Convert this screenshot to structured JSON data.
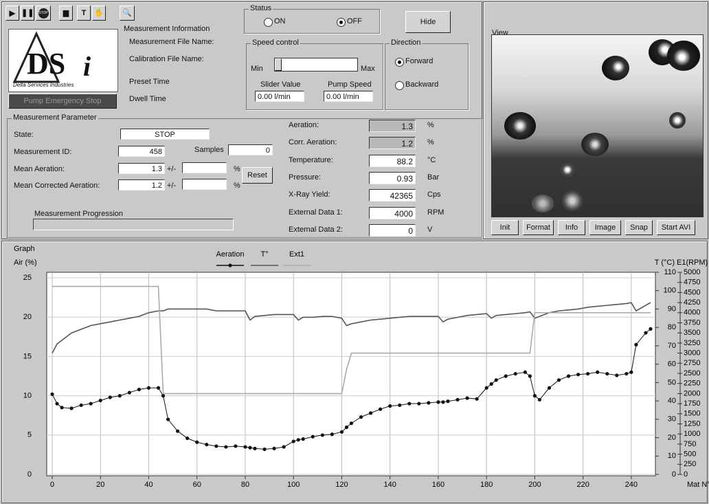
{
  "toolbar": {
    "stop_icon": "STOP"
  },
  "logo": {
    "letters": "DS",
    "italic": "i",
    "tagline": "Delta Services Industries"
  },
  "emergency_button": "Pump Emergency Stop",
  "measurement_info": {
    "title": "Measurement Information",
    "file_name": "Measurement File Name:",
    "calibration": "Calibration File Name:",
    "preset": "Preset Time",
    "dwell": "Dwell Time"
  },
  "status": {
    "title": "Status",
    "options": [
      "ON",
      "OFF"
    ],
    "selected": 1
  },
  "hide_button": "Hide",
  "speed_control": {
    "title": "Speed control",
    "min": "Min",
    "max": "Max",
    "slider_label": "Slider Value",
    "pump_label": "Pump Speed",
    "slider_value": "0.00  l/min",
    "pump_value": "0.00  l/min"
  },
  "direction": {
    "title": "Direction",
    "options": [
      "Forward",
      "Backward"
    ],
    "selected": 0
  },
  "view": {
    "title": "View",
    "buttons": [
      "Init",
      "Format",
      "Info",
      "Image",
      "Snap",
      "Start AVI"
    ]
  },
  "parameters": {
    "title": "Measurement Parameter",
    "state_label": "State:",
    "state": "STOP",
    "id_label": "Measurement ID:",
    "id": "458",
    "samples_label": "Samples",
    "samples": "0",
    "mean_label": "Mean Aeration:",
    "mean": "1.3",
    "pm": "+/-",
    "pct": "%",
    "reset": "Reset",
    "corr_label": "Mean Corrected Aeration:",
    "corr": "1.2",
    "progress_label": "Measurement Progression"
  },
  "readings": [
    {
      "label": "Aeration:",
      "value": "1.3",
      "unit": "%"
    },
    {
      "label": "Corr. Aeration:",
      "value": "1.2",
      "unit": "%"
    },
    {
      "label": "Temperature:",
      "value": "88.2",
      "unit": "°C"
    },
    {
      "label": "Pressure:",
      "value": "0.93",
      "unit": "Bar"
    },
    {
      "label": "X-Ray Yield:",
      "value": "42365",
      "unit": "Cps"
    },
    {
      "label": "External Data 1:",
      "value": "4000",
      "unit": "RPM"
    },
    {
      "label": "External Data 2:",
      "value": "0",
      "unit": "V"
    }
  ],
  "chart_data": {
    "type": "line",
    "title": "Graph",
    "y_label": "Air (%)",
    "y2_label": "T (°C)",
    "y3_label": "E1(RPM)",
    "x_label": "Mat N°",
    "grid": true,
    "x": [
      0,
      2,
      4,
      8,
      12,
      16,
      20,
      24,
      28,
      32,
      36,
      40,
      44,
      46,
      48,
      52,
      56,
      60,
      64,
      68,
      72,
      76,
      80,
      82,
      84,
      88,
      92,
      96,
      100,
      102,
      104,
      108,
      112,
      116,
      120,
      122,
      124,
      128,
      132,
      136,
      140,
      144,
      148,
      152,
      156,
      160,
      162,
      164,
      168,
      172,
      176,
      180,
      182,
      184,
      188,
      192,
      196,
      198,
      200,
      202,
      206,
      210,
      214,
      218,
      222,
      226,
      230,
      234,
      238,
      240,
      242,
      246,
      248
    ],
    "xlim": [
      0,
      250
    ],
    "xticks": [
      0,
      20,
      40,
      60,
      80,
      100,
      120,
      140,
      160,
      180,
      200,
      220,
      240
    ],
    "ylim": [
      0,
      25
    ],
    "yticks": [
      0,
      5,
      10,
      15,
      20,
      25
    ],
    "y2lim": [
      0,
      110
    ],
    "y2ticks": [
      0,
      10,
      20,
      30,
      40,
      50,
      60,
      70,
      80,
      90,
      100,
      110
    ],
    "y3lim": [
      0,
      5000
    ],
    "y3ticks": [
      0,
      250,
      500,
      750,
      1000,
      1250,
      1500,
      1750,
      2000,
      2250,
      2500,
      2750,
      3000,
      3250,
      3500,
      3750,
      4000,
      4250,
      4500,
      4750,
      5000
    ],
    "series": [
      {
        "name": "Aeration",
        "color": "#111111",
        "marker": true,
        "values": [
          10.2,
          9,
          8.5,
          8.4,
          8.8,
          9,
          9.4,
          9.8,
          10,
          10.4,
          10.8,
          11,
          11,
          10,
          7,
          5.5,
          4.6,
          4.1,
          3.8,
          3.6,
          3.5,
          3.6,
          3.5,
          3.4,
          3.3,
          3.2,
          3.3,
          3.5,
          4.2,
          4.4,
          4.5,
          4.8,
          5,
          5.1,
          5.4,
          6,
          6.5,
          7.3,
          7.8,
          8.3,
          8.7,
          8.8,
          9,
          9,
          9.1,
          9.2,
          9.2,
          9.3,
          9.5,
          9.7,
          9.6,
          11,
          11.5,
          12,
          12.5,
          12.8,
          13,
          12.5,
          10,
          9.5,
          11,
          12,
          12.5,
          12.7,
          12.8,
          13,
          12.8,
          12.6,
          12.8,
          13,
          16.5,
          18,
          18.5
        ]
      },
      {
        "name": "T°",
        "color": "#555555",
        "marker": false,
        "axis": "y2",
        "values": [
          66,
          71,
          73,
          77,
          79,
          81,
          82,
          83,
          84,
          85,
          86,
          88,
          89,
          89,
          90,
          90,
          90,
          90,
          90,
          89,
          89,
          89,
          89,
          84,
          86,
          86.5,
          87,
          87,
          87,
          84,
          85.5,
          85.5,
          86,
          86,
          85,
          81,
          82,
          83,
          84,
          84.5,
          85,
          85.5,
          86,
          86,
          86,
          86,
          83,
          84.5,
          85.5,
          86.5,
          87,
          87.5,
          85,
          86.5,
          87,
          87.5,
          88,
          88.5,
          85,
          86,
          88,
          89,
          89.5,
          90,
          91,
          91.5,
          92,
          92.5,
          93,
          93.5,
          89,
          92,
          93.5
        ]
      },
      {
        "name": "Ext1",
        "color": "#aaaaaa",
        "marker": false,
        "axis": "y3",
        "values": [
          4650,
          4650,
          4650,
          4650,
          4650,
          4650,
          4650,
          4650,
          4650,
          4650,
          4650,
          4650,
          4650,
          2000,
          2000,
          2000,
          2000,
          2000,
          2000,
          2000,
          2000,
          2000,
          2000,
          2000,
          2000,
          2000,
          2000,
          2000,
          2000,
          2000,
          2000,
          2000,
          2000,
          2000,
          2000,
          2600,
          3000,
          3000,
          3000,
          3000,
          3000,
          3000,
          3000,
          3000,
          3000,
          3000,
          3000,
          3000,
          3000,
          3000,
          3000,
          3000,
          3000,
          3000,
          3000,
          3000,
          3000,
          3000,
          4000,
          4000,
          4000,
          4000,
          4000,
          4000,
          4000,
          4000,
          4000,
          4000,
          4000,
          4000,
          4000,
          4000,
          4000
        ]
      }
    ]
  }
}
